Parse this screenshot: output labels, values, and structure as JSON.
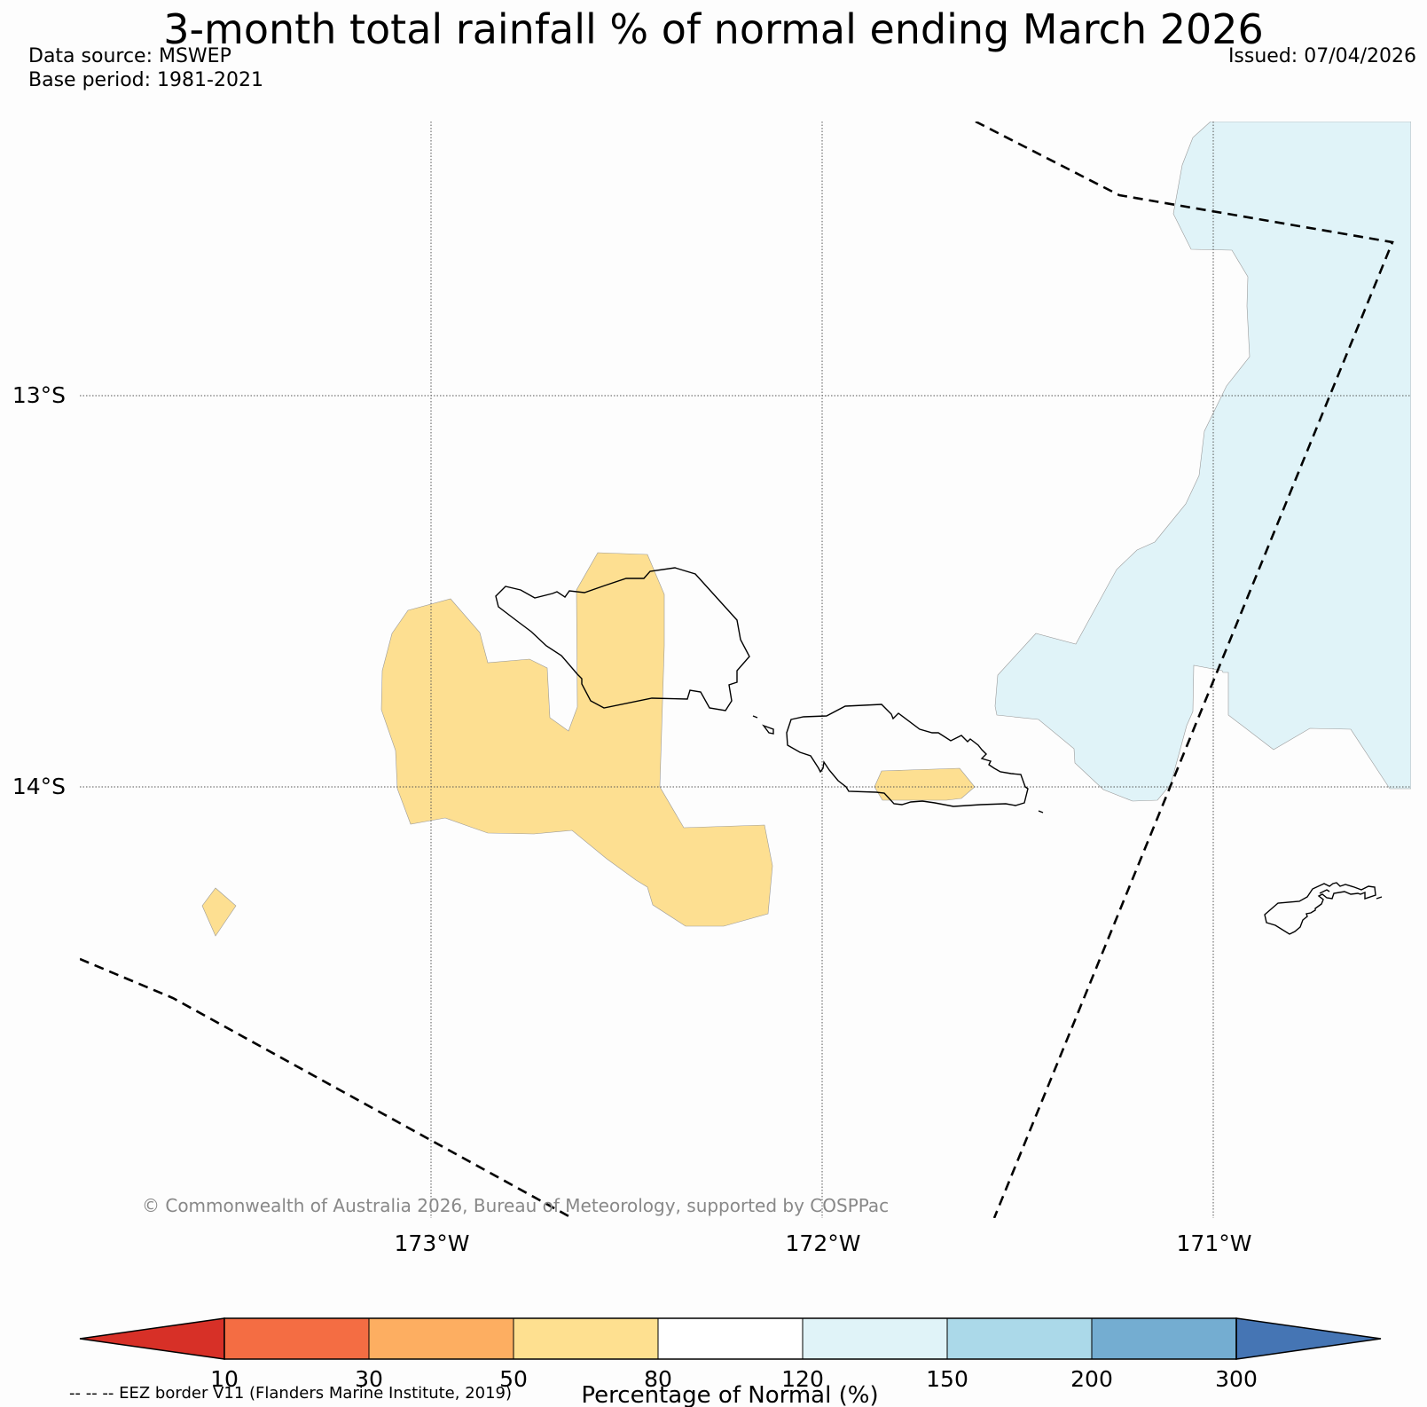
{
  "title": "3-month total rainfall % of normal ending March 2026",
  "data_source": "Data source: MSWEP",
  "base_period": "Base period: 1981-2021",
  "issued": "Issued: 07/04/2026",
  "map": {
    "lat_labels": [
      "13°S",
      "14°S"
    ],
    "lon_labels": [
      "173°W",
      "172°W",
      "171°W"
    ],
    "copyright": "© Commonwealth of Australia 2026, Bureau of Meteorology, supported by COSPPac",
    "regions": [
      {
        "category": "50-80",
        "color": "#fddf91"
      },
      {
        "category": "120-150",
        "color": "#e0f3f8"
      }
    ]
  },
  "colorbar": {
    "ticks": [
      "10",
      "30",
      "50",
      "80",
      "120",
      "150",
      "200",
      "300"
    ],
    "colors": {
      "below_10": "#d73027",
      "10-30": "#f46d43",
      "30-50": "#fdae61",
      "50-80": "#fee090",
      "80-120": "#ffffff",
      "120-150": "#e0f3f8",
      "150-200": "#abd9e9",
      "200-300": "#74add1",
      "above_300": "#4575b4"
    },
    "label": "Percentage of Normal (%)"
  },
  "eez_legend": "-- -- -- EEZ border V11 (Flanders Marine Institute, 2019)"
}
